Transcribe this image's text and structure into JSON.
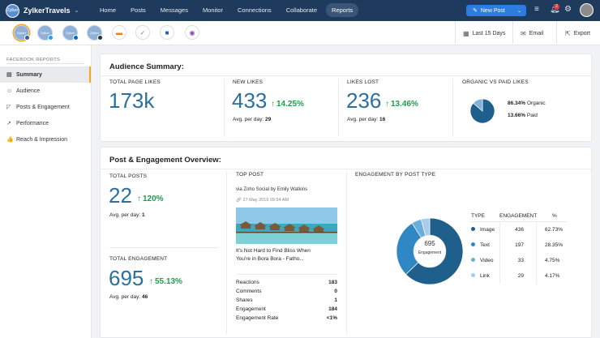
{
  "app": {
    "logo_text": "Zylker",
    "name": "ZylkerTravels"
  },
  "nav": [
    "Home",
    "Posts",
    "Messages",
    "Monitor",
    "Connections",
    "Collaborate",
    "Reports"
  ],
  "nav_active": "Reports",
  "new_post_label": "New Post",
  "notification_count": "2",
  "channels": [
    {
      "text": "Zylker",
      "network": "facebook",
      "color": "#3b5998"
    },
    {
      "text": "Zylker",
      "network": "twitter",
      "color": "#1da1f2"
    },
    {
      "text": "Zylker",
      "network": "linkedin",
      "color": "#0a66c2"
    },
    {
      "text": "Zylker",
      "network": "instagram",
      "color": "#333333"
    }
  ],
  "apps": [
    {
      "icon": "blogger-icon",
      "glyph": "▬",
      "color": "#f57d00"
    },
    {
      "icon": "feedly-icon",
      "glyph": "✓",
      "color": "#2bb24c"
    },
    {
      "icon": "grid-app-icon",
      "glyph": "■",
      "color": "#1e5fa8"
    },
    {
      "icon": "circle-app-icon",
      "glyph": "◉",
      "color": "#8e44ad"
    }
  ],
  "actions": {
    "date_range": "Last 15 Days",
    "email": "Email",
    "export": "Export"
  },
  "sidebar": {
    "heading": "FACEBOOK REPORTS",
    "items": [
      {
        "label": "Summary",
        "icon": "summary-icon",
        "glyph": "▤"
      },
      {
        "label": "Audience",
        "icon": "audience-icon",
        "glyph": "☺"
      },
      {
        "label": "Posts & Engagement",
        "icon": "posts-icon",
        "glyph": "◸"
      },
      {
        "label": "Performance",
        "icon": "performance-icon",
        "glyph": "↗"
      },
      {
        "label": "Reach & Impression",
        "icon": "reach-icon",
        "glyph": "👍"
      }
    ]
  },
  "audience": {
    "title": "Audience Summary:",
    "total_page_likes": {
      "label": "TOTAL PAGE LIKES",
      "value": "173k"
    },
    "new_likes": {
      "label": "NEW LIKES",
      "value": "433",
      "change": "14.25%",
      "avg_label": "Avg. per day:",
      "avg": "29"
    },
    "likes_lost": {
      "label": "LIKES LOST",
      "value": "236",
      "change": "13.46%",
      "avg_label": "Avg. per day:",
      "avg": "16"
    },
    "organic_paid": {
      "label": "ORGANIC VS PAID LIKES",
      "organic_pct": "86.34%",
      "organic_label": "Organic",
      "paid_pct": "13.66%",
      "paid_label": "Paid"
    }
  },
  "post_engagement": {
    "title": "Post & Engagement Overview:",
    "total_posts": {
      "label": "TOTAL POSTS",
      "value": "22",
      "change": "120%",
      "avg_label": "Avg. per day:",
      "avg": "1"
    },
    "total_engagement": {
      "label": "TOTAL ENGAGEMENT",
      "value": "695",
      "change": "55.13%",
      "avg_label": "Avg. per day:",
      "avg": "46"
    },
    "top_post": {
      "label": "TOP POST",
      "via": "via Zoho Social by Emily Watkins",
      "date": "27 May 2019 09:54 AM",
      "caption_line1": "It's Not Hard to Find Bliss When",
      "caption_line2": "You're in Bora Bora - Fatho...",
      "stats": [
        {
          "label": "Reactions",
          "value": "183"
        },
        {
          "label": "Comments",
          "value": "0"
        },
        {
          "label": "Shares",
          "value": "1"
        },
        {
          "label": "Engagement",
          "value": "184"
        },
        {
          "label": "Engagement Rate",
          "value": "<1%"
        }
      ]
    },
    "engagement_by_type": {
      "label": "ENGAGEMENT BY POST TYPE",
      "center_value": "695",
      "center_label": "Engagement",
      "headers": [
        "TYPE",
        "ENGAGEMENT",
        "%"
      ]
    }
  },
  "chart_data": [
    {
      "type": "pie",
      "title": "ORGANIC VS PAID LIKES",
      "categories": [
        "Organic",
        "Paid"
      ],
      "values": [
        86.34,
        13.66
      ],
      "colors": [
        "#1f5f8b",
        "#7fb2d9"
      ]
    },
    {
      "type": "pie",
      "title": "ENGAGEMENT BY POST TYPE",
      "categories": [
        "Image",
        "Text",
        "Video",
        "Link"
      ],
      "values": [
        436,
        197,
        33,
        29
      ],
      "percent_labels": [
        "62.73%",
        "28.35%",
        "4.75%",
        "4.17%"
      ],
      "colors": [
        "#1f5f8b",
        "#2f87c3",
        "#6aaedc",
        "#a7cdea"
      ]
    }
  ]
}
